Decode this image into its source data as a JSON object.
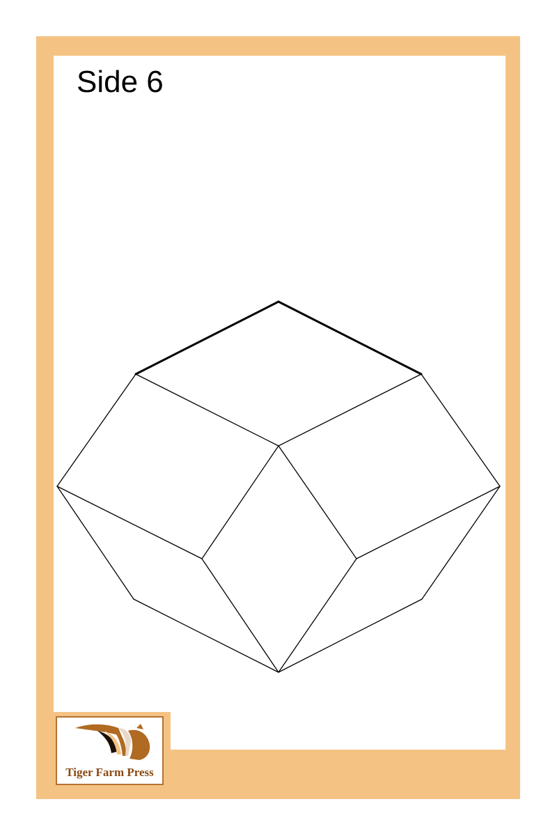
{
  "card": {
    "title": "Side 6",
    "colors": {
      "frame": "#f4c384",
      "panel": "#ffffff",
      "lines": "#000000"
    }
  },
  "logo": {
    "text": "Tiger Farm Press",
    "icon": "tiger-icon",
    "colors": {
      "text": "#8a4a15",
      "border": "#b5722f",
      "mark": "#b06a22"
    }
  }
}
